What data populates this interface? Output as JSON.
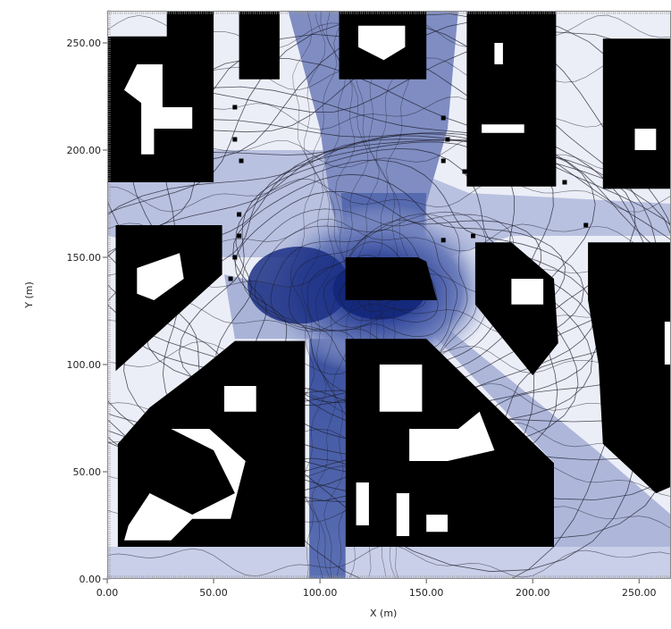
{
  "chart_data": {
    "type": "heatmap",
    "title": "",
    "xlabel": "X (m)",
    "ylabel": "Y (m)",
    "xlim": [
      0,
      265
    ],
    "ylim": [
      0,
      265
    ],
    "x_ticks": [
      "0.00",
      "50.00",
      "100.00",
      "150.00",
      "200.00",
      "250.00"
    ],
    "x_tick_values": [
      0,
      50,
      100,
      150,
      200,
      250
    ],
    "y_ticks": [
      "0.00",
      "50.00",
      "100.00",
      "150.00",
      "200.00",
      "250.00"
    ],
    "y_tick_values": [
      0,
      50,
      100,
      150,
      200,
      250
    ],
    "colors": {
      "low": "#eceef7",
      "mid": "#8b98c6",
      "high": "#13277a",
      "building": "#000000",
      "frame": "#8a8a8a"
    },
    "grid": false,
    "contour_lines": true,
    "buildings": [
      {
        "name": "building-nw",
        "points": [
          [
            0,
            253
          ],
          [
            28,
            253
          ],
          [
            28,
            265
          ],
          [
            50,
            265
          ],
          [
            50,
            253
          ],
          [
            50,
            242
          ],
          [
            50,
            185
          ],
          [
            20,
            185
          ],
          [
            0,
            185
          ]
        ]
      },
      {
        "name": "building-n1",
        "points": [
          [
            62,
            265
          ],
          [
            81,
            265
          ],
          [
            81,
            233
          ],
          [
            62,
            233
          ]
        ]
      },
      {
        "name": "building-n2",
        "points": [
          [
            109,
            265
          ],
          [
            150,
            265
          ],
          [
            150,
            233
          ],
          [
            109,
            233
          ]
        ]
      },
      {
        "name": "building-n3",
        "points": [
          [
            169,
            265
          ],
          [
            211,
            265
          ],
          [
            211,
            183
          ],
          [
            169,
            183
          ]
        ]
      },
      {
        "name": "building-ne",
        "points": [
          [
            233,
            252
          ],
          [
            265,
            252
          ],
          [
            265,
            182
          ],
          [
            233,
            182
          ]
        ]
      },
      {
        "name": "building-w",
        "points": [
          [
            4,
            165
          ],
          [
            54,
            165
          ],
          [
            54,
            142
          ],
          [
            4,
            97
          ]
        ]
      },
      {
        "name": "building-c",
        "points": [
          [
            112,
            150
          ],
          [
            146,
            150
          ],
          [
            150,
            148
          ],
          [
            155,
            130
          ],
          [
            112,
            130
          ]
        ]
      },
      {
        "name": "building-e1",
        "points": [
          [
            173,
            157
          ],
          [
            190,
            157
          ],
          [
            210,
            140
          ],
          [
            212,
            110
          ],
          [
            200,
            95
          ],
          [
            173,
            128
          ]
        ]
      },
      {
        "name": "building-e2",
        "points": [
          [
            226,
            157
          ],
          [
            265,
            157
          ],
          [
            265,
            43
          ],
          [
            258,
            40
          ],
          [
            233,
            63
          ],
          [
            231,
            100
          ],
          [
            226,
            130
          ]
        ]
      },
      {
        "name": "building-sw",
        "points": [
          [
            5,
            63
          ],
          [
            20,
            80
          ],
          [
            44,
            98
          ],
          [
            60,
            111
          ],
          [
            93,
            111
          ],
          [
            93,
            15
          ],
          [
            5,
            15
          ]
        ]
      },
      {
        "name": "building-s",
        "points": [
          [
            112,
            112
          ],
          [
            150,
            112
          ],
          [
            210,
            54
          ],
          [
            210,
            15
          ],
          [
            112,
            15
          ]
        ]
      }
    ],
    "basin_center": [
      128,
      135
    ]
  }
}
